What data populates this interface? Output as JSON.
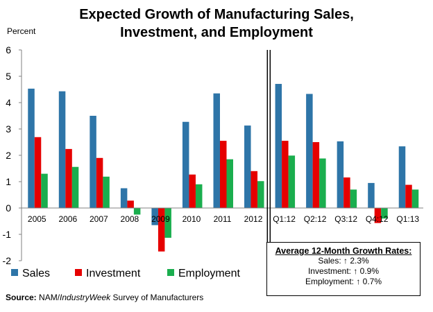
{
  "title_line1": "Expected Growth of Manufacturing Sales,",
  "title_line2": "Investment, and Employment",
  "chart_data": {
    "type": "bar",
    "ylabel": "Percent",
    "ylim": [
      -2,
      6
    ],
    "yticks": [
      -2,
      -1,
      0,
      1,
      2,
      3,
      4,
      5,
      6
    ],
    "categories": [
      "2005",
      "2006",
      "2007",
      "2008",
      "2009",
      "2010",
      "2011",
      "2012",
      "Q1:12",
      "Q2:12",
      "Q3:12",
      "Q4:12",
      "Q1:13"
    ],
    "divider_after_index": 7,
    "series": [
      {
        "name": "Sales",
        "color": "#2E75A8",
        "values": [
          4.53,
          4.43,
          3.5,
          0.75,
          -0.65,
          3.27,
          4.35,
          3.13,
          4.71,
          4.33,
          2.53,
          0.95,
          2.34
        ]
      },
      {
        "name": "Investment",
        "color": "#E60000",
        "values": [
          2.69,
          2.24,
          1.9,
          0.28,
          -1.65,
          1.27,
          2.55,
          1.4,
          2.55,
          2.5,
          1.16,
          -0.57,
          0.88
        ]
      },
      {
        "name": "Employment",
        "color": "#1AAE4E",
        "values": [
          1.3,
          1.56,
          1.19,
          -0.25,
          -1.13,
          0.9,
          1.85,
          1.02,
          1.99,
          1.88,
          0.7,
          -0.4,
          0.7
        ]
      }
    ],
    "grid": false
  },
  "infobox": {
    "heading": "Average 12-Month Growth Rates:",
    "line1": "Sales: ↑ 2.3%",
    "line2": "Investment: ↑ 0.9%",
    "line3": "Employment: ↑ 0.7%"
  },
  "source": {
    "label": "Source:",
    "prefix": " NAM/",
    "italic": "IndustryWeek",
    "suffix": " Survey of Manufacturers"
  }
}
